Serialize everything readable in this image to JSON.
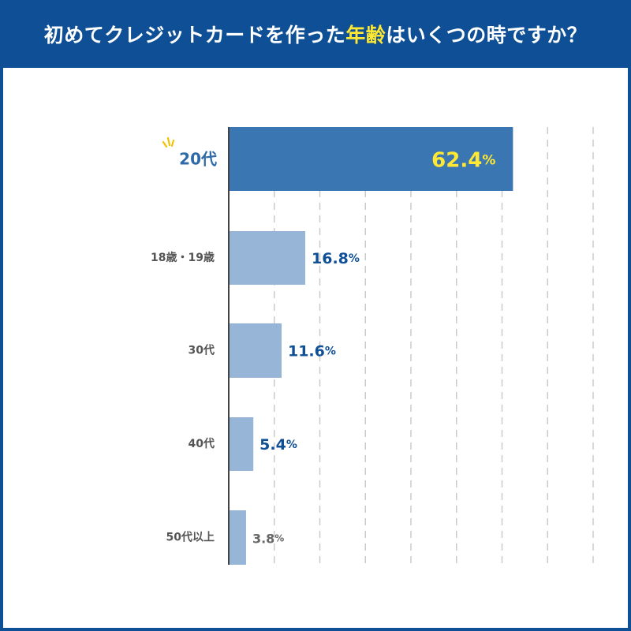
{
  "header": {
    "title_before": "初めてクレジットカードを作った",
    "title_highlight": "年齢",
    "title_after": "はいくつの時ですか？"
  },
  "colors": {
    "background": "#0e4f95",
    "highlight_bar": "#3a77b2",
    "bar": "#96b5d7",
    "highlight_text": "#ffe833",
    "value_text": "#0e4f95",
    "highlight_label": "#2e6aa8",
    "muted_label": "#555555",
    "grid": "#c8c8c8"
  },
  "chart_data": {
    "type": "bar",
    "orientation": "horizontal",
    "title": "初めてクレジットカードを作った年齢はいくつの時ですか？",
    "xlabel": "",
    "ylabel": "",
    "xlim": [
      0,
      80
    ],
    "unit": "%",
    "grid": true,
    "categories": [
      "20代",
      "18歳・19歳",
      "30代",
      "40代",
      "50代以上"
    ],
    "values": [
      62.4,
      16.8,
      11.6,
      5.4,
      3.8
    ],
    "value_labels": [
      "62.4",
      "16.8",
      "11.6",
      "5.4",
      "3.8"
    ],
    "highlighted_index": 0
  }
}
